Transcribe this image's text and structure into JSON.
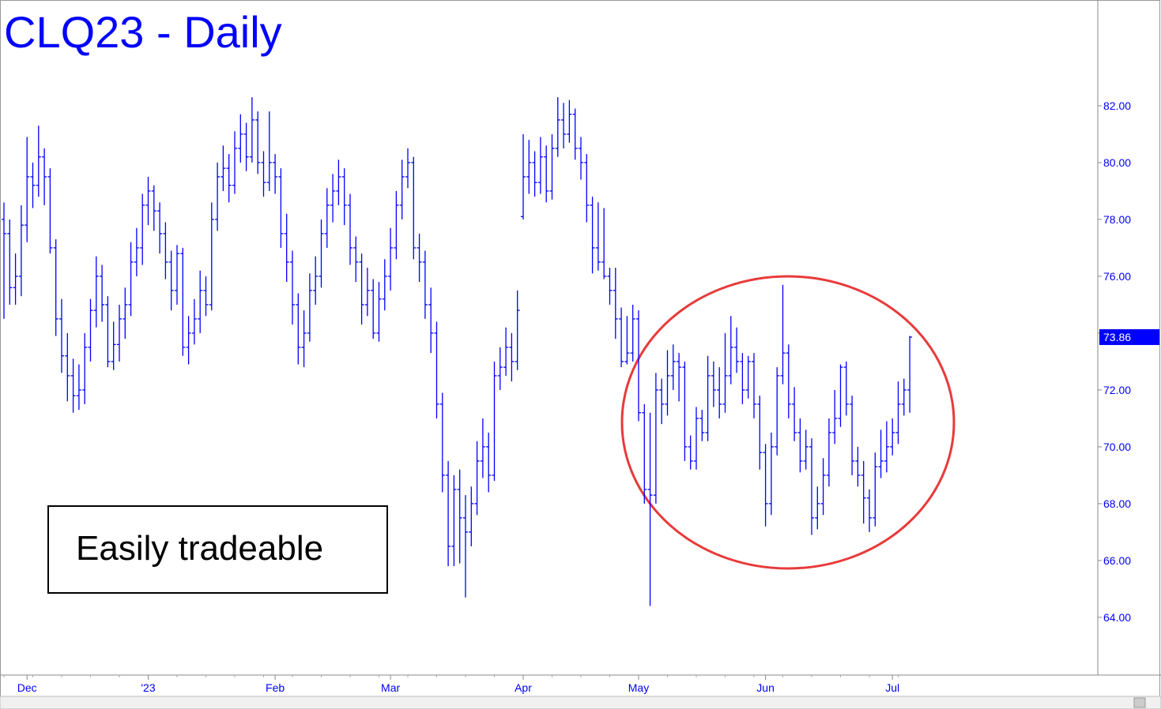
{
  "chart_data": {
    "type": "ohlc",
    "title": "CLQ23 - Daily",
    "annotation": "Easily tradeable",
    "color": "#0000ff",
    "ylim": [
      61.97,
      85.72
    ],
    "yticks": [
      {
        "value": 64,
        "label": "64.00"
      },
      {
        "value": 66,
        "label": "66.00"
      },
      {
        "value": 68,
        "label": "68.00"
      },
      {
        "value": 70,
        "label": "70.00"
      },
      {
        "value": 72,
        "label": "72.00"
      },
      {
        "value": 74,
        "label": "74.00"
      },
      {
        "value": 76,
        "label": "76.00"
      },
      {
        "value": 78,
        "label": "78.00"
      },
      {
        "value": 80,
        "label": "80.00"
      },
      {
        "value": 82,
        "label": "82.00"
      }
    ],
    "categories": [
      null,
      null,
      null,
      null,
      "Dec",
      null,
      null,
      null,
      null,
      null,
      null,
      null,
      null,
      null,
      null,
      null,
      null,
      null,
      null,
      null,
      null,
      null,
      null,
      null,
      null,
      "'23",
      null,
      null,
      null,
      null,
      null,
      null,
      null,
      null,
      null,
      null,
      null,
      null,
      null,
      null,
      null,
      null,
      null,
      null,
      null,
      null,
      null,
      "Feb",
      null,
      null,
      null,
      null,
      null,
      null,
      null,
      null,
      null,
      null,
      null,
      null,
      null,
      null,
      null,
      null,
      null,
      null,
      null,
      "Mar",
      null,
      null,
      null,
      null,
      null,
      null,
      null,
      null,
      null,
      null,
      null,
      null,
      null,
      null,
      null,
      null,
      null,
      null,
      null,
      null,
      null,
      null,
      "Apr",
      null,
      null,
      null,
      null,
      null,
      null,
      null,
      null,
      null,
      null,
      null,
      null,
      null,
      null,
      null,
      null,
      null,
      null,
      null,
      "May",
      null,
      null,
      null,
      null,
      null,
      null,
      null,
      null,
      null,
      null,
      null,
      null,
      null,
      null,
      null,
      null,
      null,
      null,
      null,
      null,
      null,
      "Jun",
      null,
      null,
      null,
      null,
      null,
      null,
      null,
      null,
      null,
      null,
      null,
      null,
      null,
      null,
      null,
      null,
      null,
      null,
      null,
      null,
      null,
      "Jul",
      null,
      null,
      null
    ],
    "bars": [
      [
        78.0,
        78.6,
        74.5,
        77.5
      ],
      [
        77.5,
        78.0,
        75.0,
        75.6
      ],
      [
        75.6,
        76.8,
        75.0,
        76.0
      ],
      [
        76.0,
        78.5,
        75.3,
        77.8
      ],
      [
        77.8,
        80.9,
        77.2,
        79.5
      ],
      [
        79.5,
        80.0,
        78.4,
        79.2
      ],
      [
        79.2,
        81.3,
        78.8,
        80.2
      ],
      [
        80.2,
        80.5,
        78.5,
        79.5
      ],
      [
        79.5,
        79.8,
        76.8,
        77.0
      ],
      [
        77.0,
        77.3,
        73.9,
        74.5
      ],
      [
        74.5,
        75.2,
        72.6,
        73.2
      ],
      [
        73.2,
        74.0,
        71.6,
        72.5
      ],
      [
        72.5,
        73.1,
        71.2,
        71.8
      ],
      [
        71.8,
        72.9,
        71.3,
        72.0
      ],
      [
        72.0,
        74.0,
        71.5,
        73.5
      ],
      [
        73.5,
        75.2,
        73.0,
        74.8
      ],
      [
        74.8,
        76.7,
        74.2,
        76.0
      ],
      [
        76.0,
        76.4,
        74.4,
        75.0
      ],
      [
        75.0,
        75.3,
        72.8,
        73.0
      ],
      [
        73.0,
        74.4,
        72.7,
        73.6
      ],
      [
        73.6,
        75.0,
        73.0,
        74.5
      ],
      [
        74.5,
        75.6,
        73.8,
        75.0
      ],
      [
        75.0,
        77.2,
        74.6,
        76.5
      ],
      [
        76.5,
        77.7,
        76.0,
        77.0
      ],
      [
        77.0,
        78.9,
        76.4,
        78.5
      ],
      [
        78.5,
        79.5,
        77.8,
        79.0
      ],
      [
        79.0,
        79.2,
        77.6,
        78.3
      ],
      [
        78.3,
        78.6,
        76.8,
        77.5
      ],
      [
        77.5,
        77.9,
        75.9,
        76.5
      ],
      [
        76.5,
        76.9,
        74.8,
        75.5
      ],
      [
        75.5,
        77.1,
        75.0,
        76.8
      ],
      [
        76.8,
        77.0,
        73.2,
        73.5
      ],
      [
        73.5,
        74.6,
        72.9,
        74.0
      ],
      [
        74.0,
        75.2,
        73.6,
        74.5
      ],
      [
        74.5,
        76.2,
        74.0,
        75.5
      ],
      [
        75.5,
        76.0,
        74.6,
        75.0
      ],
      [
        75.0,
        78.6,
        74.8,
        78.0
      ],
      [
        78.0,
        80.0,
        77.6,
        79.5
      ],
      [
        79.5,
        80.6,
        79.0,
        79.8
      ],
      [
        79.8,
        80.3,
        78.6,
        79.2
      ],
      [
        79.2,
        81.1,
        78.9,
        80.5
      ],
      [
        80.5,
        81.7,
        80.0,
        81.0
      ],
      [
        81.0,
        81.4,
        79.7,
        80.2
      ],
      [
        80.2,
        82.3,
        80.0,
        81.5
      ],
      [
        81.5,
        81.8,
        79.6,
        80.0
      ],
      [
        80.0,
        80.4,
        78.8,
        79.3
      ],
      [
        79.3,
        81.8,
        79.0,
        80.0
      ],
      [
        80.0,
        80.3,
        78.9,
        79.5
      ],
      [
        79.5,
        79.8,
        77.0,
        77.5
      ],
      [
        77.5,
        78.2,
        75.8,
        76.5
      ],
      [
        76.5,
        76.9,
        74.3,
        75.0
      ],
      [
        75.0,
        75.4,
        72.9,
        73.5
      ],
      [
        73.5,
        74.8,
        72.8,
        74.0
      ],
      [
        74.0,
        76.1,
        73.7,
        75.5
      ],
      [
        75.5,
        76.7,
        75.0,
        76.0
      ],
      [
        76.0,
        78.0,
        75.6,
        77.5
      ],
      [
        77.5,
        79.1,
        77.0,
        78.5
      ],
      [
        78.5,
        79.6,
        77.9,
        79.0
      ],
      [
        79.0,
        80.1,
        78.5,
        79.5
      ],
      [
        79.5,
        79.8,
        77.8,
        78.5
      ],
      [
        78.5,
        78.9,
        76.4,
        77.0
      ],
      [
        77.0,
        77.4,
        75.8,
        76.5
      ],
      [
        76.5,
        76.8,
        74.3,
        75.0
      ],
      [
        75.0,
        76.3,
        74.6,
        75.5
      ],
      [
        75.5,
        75.9,
        73.8,
        74.0
      ],
      [
        74.0,
        75.8,
        73.7,
        75.2
      ],
      [
        75.2,
        76.6,
        74.8,
        76.0
      ],
      [
        76.0,
        77.7,
        75.5,
        77.0
      ],
      [
        77.0,
        79.0,
        76.6,
        78.5
      ],
      [
        78.5,
        80.1,
        78.0,
        79.5
      ],
      [
        79.5,
        80.5,
        79.1,
        80.0
      ],
      [
        80.0,
        80.2,
        76.6,
        77.0
      ],
      [
        77.0,
        77.5,
        75.8,
        76.5
      ],
      [
        76.5,
        76.9,
        74.5,
        75.0
      ],
      [
        75.0,
        75.6,
        73.3,
        74.0
      ],
      [
        74.0,
        74.4,
        71.0,
        71.5
      ],
      [
        71.5,
        71.9,
        68.4,
        69.0
      ],
      [
        69.0,
        69.5,
        65.8,
        66.5
      ],
      [
        66.5,
        69.0,
        65.8,
        68.5
      ],
      [
        68.5,
        69.2,
        65.9,
        67.5
      ],
      [
        67.5,
        68.3,
        64.7,
        67.0
      ],
      [
        67.0,
        68.6,
        66.5,
        68.0
      ],
      [
        68.0,
        70.2,
        67.6,
        69.5
      ],
      [
        69.5,
        71.0,
        68.9,
        70.0
      ],
      [
        70.0,
        70.5,
        68.4,
        69.0
      ],
      [
        69.0,
        73.0,
        68.8,
        72.5
      ],
      [
        72.5,
        73.5,
        72.0,
        72.8
      ],
      [
        72.8,
        74.2,
        72.5,
        73.5
      ],
      [
        73.5,
        74.0,
        72.3,
        73.0
      ],
      [
        73.0,
        75.5,
        72.7,
        74.8
      ],
      [
        78.1,
        81.0,
        78.0,
        79.5
      ],
      [
        79.5,
        80.8,
        78.9,
        80.0
      ],
      [
        80.0,
        80.4,
        78.8,
        79.3
      ],
      [
        79.3,
        80.9,
        78.9,
        80.2
      ],
      [
        80.2,
        80.6,
        78.6,
        79.0
      ],
      [
        79.0,
        81.0,
        78.7,
        80.5
      ],
      [
        80.5,
        82.3,
        80.2,
        81.5
      ],
      [
        81.5,
        82.1,
        80.5,
        81.0
      ],
      [
        81.0,
        82.2,
        80.7,
        81.7
      ],
      [
        81.7,
        81.9,
        80.1,
        80.5
      ],
      [
        80.5,
        80.9,
        79.4,
        80.0
      ],
      [
        80.0,
        80.3,
        77.9,
        78.5
      ],
      [
        78.5,
        78.8,
        76.1,
        77.0
      ],
      [
        77.0,
        78.6,
        76.2,
        76.5
      ],
      [
        76.5,
        78.4,
        75.9,
        76.0
      ],
      [
        76.0,
        76.3,
        75.0,
        75.5
      ],
      [
        75.5,
        76.3,
        73.8,
        74.5
      ],
      [
        74.5,
        74.9,
        72.8,
        73.0
      ],
      [
        73.0,
        74.6,
        72.9,
        73.3
      ],
      [
        73.3,
        75.0,
        73.0,
        74.5
      ],
      [
        74.5,
        74.8,
        70.9,
        71.2
      ],
      [
        71.2,
        71.5,
        68.0,
        68.5
      ],
      [
        68.5,
        71.2,
        64.4,
        68.3
      ],
      [
        68.3,
        72.6,
        68.0,
        72.0
      ],
      [
        72.0,
        72.4,
        70.8,
        71.5
      ],
      [
        71.5,
        73.4,
        71.1,
        72.5
      ],
      [
        72.5,
        73.6,
        72.0,
        73.0
      ],
      [
        73.0,
        73.3,
        71.6,
        72.8
      ],
      [
        72.8,
        73.0,
        69.5,
        70.0
      ],
      [
        70.0,
        70.4,
        69.2,
        69.5
      ],
      [
        69.5,
        71.4,
        69.2,
        71.0
      ],
      [
        71.0,
        71.3,
        70.2,
        70.5
      ],
      [
        70.5,
        73.2,
        70.2,
        72.5
      ],
      [
        72.5,
        73.0,
        71.4,
        72.0
      ],
      [
        72.0,
        72.8,
        71.0,
        71.5
      ],
      [
        71.5,
        74.0,
        71.2,
        72.5
      ],
      [
        72.5,
        74.6,
        72.2,
        73.5
      ],
      [
        73.5,
        74.2,
        72.6,
        73.0
      ],
      [
        73.0,
        73.3,
        71.5,
        72.0
      ],
      [
        72.0,
        73.2,
        71.7,
        73.0
      ],
      [
        73.0,
        73.3,
        71.0,
        71.5
      ],
      [
        71.5,
        71.8,
        69.2,
        69.8
      ],
      [
        69.8,
        70.1,
        67.2,
        68.0
      ],
      [
        68.0,
        70.5,
        67.6,
        70.0
      ],
      [
        70.0,
        72.8,
        69.7,
        72.5
      ],
      [
        72.5,
        75.7,
        72.2,
        73.3
      ],
      [
        73.3,
        73.6,
        71.0,
        71.5
      ],
      [
        71.5,
        72.1,
        70.2,
        70.5
      ],
      [
        70.5,
        71.0,
        69.1,
        69.5
      ],
      [
        69.5,
        70.6,
        69.2,
        70.0
      ],
      [
        70.0,
        70.3,
        66.9,
        67.5
      ],
      [
        67.5,
        68.6,
        67.1,
        68.0
      ],
      [
        68.0,
        69.6,
        67.6,
        69.0
      ],
      [
        69.0,
        71.0,
        68.6,
        70.5
      ],
      [
        70.5,
        72.0,
        70.1,
        71.0
      ],
      [
        71.0,
        72.9,
        70.7,
        72.8
      ],
      [
        72.8,
        73.0,
        71.1,
        71.5
      ],
      [
        71.5,
        71.8,
        69.0,
        69.5
      ],
      [
        69.5,
        70.0,
        68.6,
        69.0
      ],
      [
        69.0,
        69.5,
        67.3,
        68.2
      ],
      [
        68.2,
        68.5,
        67.0,
        67.5
      ],
      [
        67.5,
        69.8,
        67.2,
        69.3
      ],
      [
        69.3,
        70.6,
        68.9,
        69.5
      ],
      [
        69.5,
        70.9,
        69.1,
        70.0
      ],
      [
        70.0,
        71.0,
        69.7,
        70.5
      ],
      [
        70.5,
        72.3,
        70.1,
        71.5
      ],
      [
        71.5,
        72.4,
        71.1,
        72.0
      ],
      [
        72.0,
        73.9,
        71.2,
        73.86
      ]
    ]
  }
}
